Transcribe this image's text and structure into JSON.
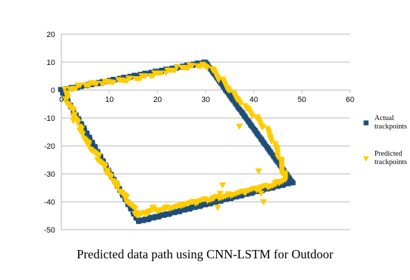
{
  "chart_data": {
    "type": "scatter",
    "title": "",
    "caption": "Predicted data path using CNN-LSTM for Outdoor",
    "xlabel": "",
    "ylabel": "",
    "xlim": [
      0,
      60
    ],
    "ylim": [
      -50,
      20
    ],
    "xticks": [
      0,
      10,
      20,
      30,
      40,
      50,
      60
    ],
    "yticks": [
      20,
      10,
      0,
      -10,
      -20,
      -30,
      -40,
      -50
    ],
    "grid": "horizontal",
    "legend_position": "right",
    "series": [
      {
        "name": "Actual trackpoints",
        "color": "#1f4e79",
        "marker": "square",
        "path": [
          [
            0,
            0
          ],
          [
            30,
            10
          ],
          [
            48,
            -33
          ],
          [
            16,
            -47
          ],
          [
            0,
            0
          ]
        ]
      },
      {
        "name": "Predicted trackpoints",
        "color": "#ffcc00",
        "marker": "triangle-down",
        "path": [
          [
            1,
            0
          ],
          [
            5,
            2
          ],
          [
            10,
            3
          ],
          [
            15,
            4
          ],
          [
            20,
            6
          ],
          [
            25,
            8
          ],
          [
            29,
            9
          ],
          [
            31,
            8
          ],
          [
            34,
            2
          ],
          [
            37,
            -4
          ],
          [
            40,
            -9
          ],
          [
            43,
            -15
          ],
          [
            45,
            -22
          ],
          [
            46,
            -28
          ],
          [
            46.5,
            -32
          ],
          [
            44,
            -34
          ],
          [
            39,
            -36
          ],
          [
            34,
            -38
          ],
          [
            28,
            -40
          ],
          [
            23,
            -42
          ],
          [
            18,
            -43.5
          ],
          [
            16,
            -45
          ],
          [
            14,
            -40
          ],
          [
            11,
            -33
          ],
          [
            8,
            -25
          ],
          [
            5,
            -18
          ],
          [
            3,
            -10
          ],
          [
            1,
            -3
          ],
          [
            1,
            0
          ]
        ],
        "outliers": [
          [
            2.5,
            -11
          ],
          [
            37,
            -13
          ],
          [
            41,
            -29
          ],
          [
            33.5,
            -34
          ],
          [
            32.5,
            -42
          ],
          [
            33,
            -37
          ],
          [
            41.5,
            -37
          ],
          [
            42,
            -40
          ],
          [
            17.5,
            -44
          ],
          [
            19,
            -42
          ]
        ]
      }
    ]
  }
}
